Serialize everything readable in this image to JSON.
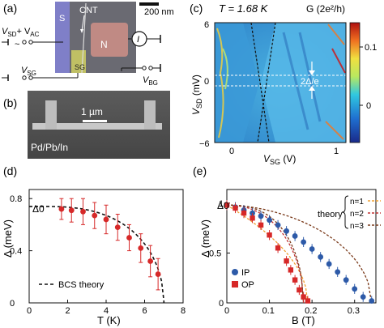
{
  "panels": {
    "a": {
      "label": "(a)",
      "scale_label": "200 nm",
      "cnt": "CNT",
      "s": "S",
      "n": "N",
      "sg": "SG",
      "i": "I",
      "vsd": "V",
      "vsd_sub": "SD",
      "plus": "+ V",
      "vac_sub": "AC",
      "tilde": "~",
      "vsg": "V",
      "vsg_sub": "SG",
      "vbg": "V",
      "vbg_sub": "BG"
    },
    "b": {
      "label": "(b)",
      "scale_label": "1 µm",
      "material": "Pd/Pb/In"
    },
    "c": {
      "label": "(c)",
      "temp": "T = 1.68 K",
      "cbar_title": "G (2e²/h)",
      "cbar_ticks": [
        "0.1",
        "0"
      ],
      "y_ticks": [
        "6",
        "0",
        "−6"
      ],
      "x_ticks": [
        "0",
        "1"
      ],
      "ylabel": "V",
      "ylabel_sub": "SD",
      "ylabel_unit": " (mV)",
      "xlabel": "V",
      "xlabel_sub": "SG",
      "xlabel_unit": " (V)",
      "gap_label": "2Δ/e"
    }
  },
  "chart_data": [
    {
      "type": "scatter",
      "panel": "(d)",
      "ylabel": "Δ (meV)",
      "xlabel": "T (K)",
      "xlim": [
        0,
        8
      ],
      "ylim": [
        0,
        0.8
      ],
      "x_ticks": [
        "0",
        "2",
        "4",
        "6",
        "8"
      ],
      "y_ticks": [
        "0",
        "0.4",
        "0.8"
      ],
      "delta0_label": "Δ0",
      "legend": "BCS theory",
      "points": [
        {
          "x": 1.68,
          "y": 0.72,
          "err": 0.08
        },
        {
          "x": 2.2,
          "y": 0.71,
          "err": 0.09
        },
        {
          "x": 2.8,
          "y": 0.7,
          "err": 0.1
        },
        {
          "x": 3.4,
          "y": 0.67,
          "err": 0.1
        },
        {
          "x": 4.0,
          "y": 0.64,
          "err": 0.11
        },
        {
          "x": 4.6,
          "y": 0.58,
          "err": 0.1
        },
        {
          "x": 5.2,
          "y": 0.5,
          "err": 0.1
        },
        {
          "x": 5.8,
          "y": 0.42,
          "err": 0.11
        },
        {
          "x": 6.3,
          "y": 0.32,
          "err": 0.12
        },
        {
          "x": 6.7,
          "y": 0.22,
          "err": 0.12
        }
      ]
    },
    {
      "type": "scatter",
      "panel": "(e)",
      "ylabel": "Δ (meV)",
      "xlabel": "B (T)",
      "xlim": [
        0,
        0.35
      ],
      "ylim": [
        0,
        1
      ],
      "x_ticks": [
        "0",
        "0.1",
        "0.2",
        "0.3"
      ],
      "y_ticks": [
        "0",
        "0.5",
        "1"
      ],
      "delta0_label": "Δ0",
      "theory_label": "theory",
      "theory_lines": [
        "n=1",
        "n=2",
        "n=3"
      ],
      "legend": [
        "IP",
        "OP"
      ],
      "series": [
        {
          "name": "IP",
          "color": "#2d5aa8",
          "points": [
            {
              "x": 0.0,
              "y": 0.98
            },
            {
              "x": 0.02,
              "y": 0.96
            },
            {
              "x": 0.04,
              "y": 0.93
            },
            {
              "x": 0.06,
              "y": 0.9
            },
            {
              "x": 0.08,
              "y": 0.87
            },
            {
              "x": 0.1,
              "y": 0.83
            },
            {
              "x": 0.12,
              "y": 0.78
            },
            {
              "x": 0.14,
              "y": 0.72
            },
            {
              "x": 0.16,
              "y": 0.67
            },
            {
              "x": 0.18,
              "y": 0.61
            },
            {
              "x": 0.2,
              "y": 0.54
            },
            {
              "x": 0.22,
              "y": 0.46
            },
            {
              "x": 0.24,
              "y": 0.39
            },
            {
              "x": 0.26,
              "y": 0.31
            },
            {
              "x": 0.28,
              "y": 0.23
            },
            {
              "x": 0.3,
              "y": 0.14
            },
            {
              "x": 0.32,
              "y": 0.06
            },
            {
              "x": 0.34,
              "y": 0.02
            }
          ]
        },
        {
          "name": "OP",
          "color": "#d62828",
          "points": [
            {
              "x": 0.0,
              "y": 0.98
            },
            {
              "x": 0.02,
              "y": 0.95
            },
            {
              "x": 0.04,
              "y": 0.9
            },
            {
              "x": 0.06,
              "y": 0.85
            },
            {
              "x": 0.08,
              "y": 0.78
            },
            {
              "x": 0.1,
              "y": 0.68
            },
            {
              "x": 0.12,
              "y": 0.55
            },
            {
              "x": 0.14,
              "y": 0.42
            },
            {
              "x": 0.15,
              "y": 0.33
            },
            {
              "x": 0.16,
              "y": 0.23
            },
            {
              "x": 0.17,
              "y": 0.13
            },
            {
              "x": 0.18,
              "y": 0.06
            },
            {
              "x": 0.19,
              "y": 0.02
            }
          ]
        }
      ]
    }
  ],
  "colors": {
    "ip": "#2d5aa8",
    "op": "#d62828",
    "n1": "#f0a030",
    "n2": "#c03030",
    "n3": "#7a3a1a"
  }
}
